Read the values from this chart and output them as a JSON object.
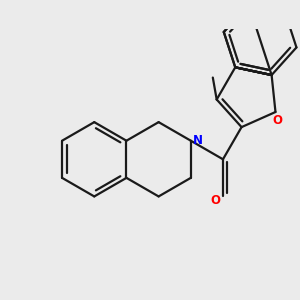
{
  "background_color": "#ebebeb",
  "bond_color": "#1a1a1a",
  "N_color": "#0000ff",
  "O_color": "#ff0000",
  "line_width": 1.6,
  "figsize": [
    3.0,
    3.0
  ],
  "dpi": 100,
  "xlim": [
    -2.5,
    5.5
  ],
  "ylim": [
    -3.0,
    3.5
  ]
}
